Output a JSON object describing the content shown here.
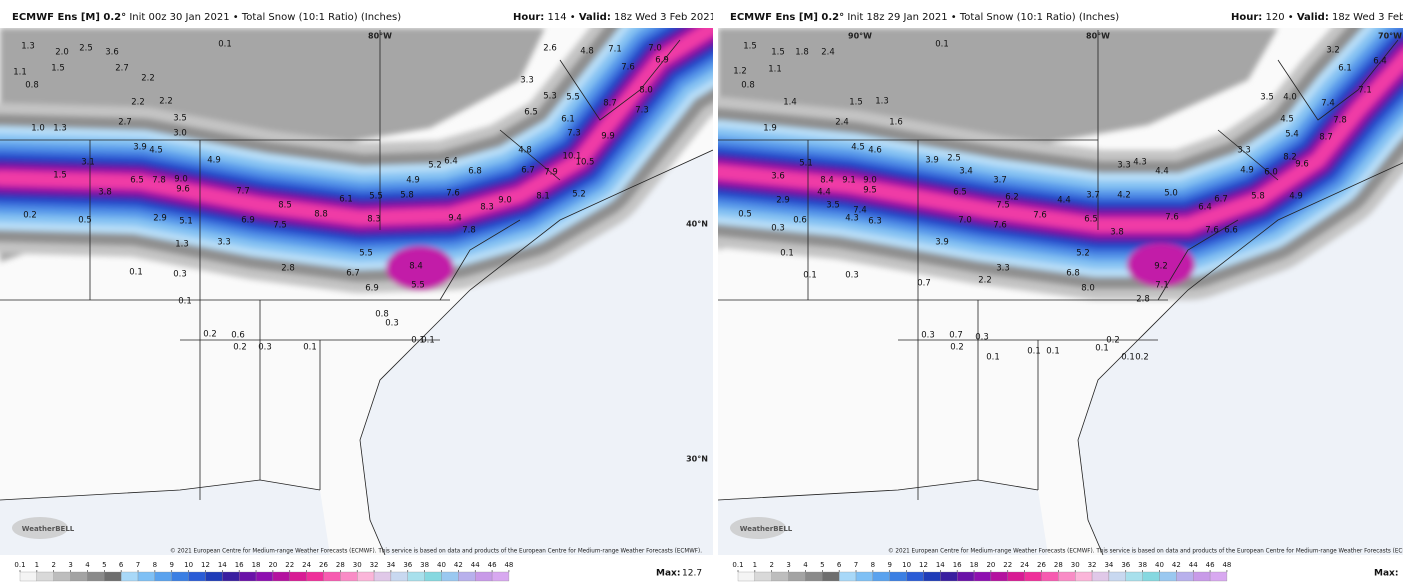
{
  "separator": "•",
  "legend_ticks": [
    0.1,
    1,
    2,
    3,
    4,
    5,
    6,
    7,
    8,
    9,
    10,
    12,
    14,
    16,
    18,
    20,
    22,
    24,
    26,
    28,
    30,
    32,
    34,
    36,
    38,
    40,
    42,
    44,
    46,
    48
  ],
  "panels": [
    {
      "header": {
        "model": "ECMWF Ens [M] 0.2°",
        "init": "Init 00z 30 Jan 2021",
        "product": "Total Snow (10:1 Ratio) (Inches)",
        "hour_label": "Hour:",
        "hour": "114",
        "valid_label": "Valid:",
        "valid": "18z Wed 3 Feb 2021"
      },
      "grid_labels": [
        "80°W",
        "40°N",
        "30°N"
      ],
      "map_labels": [
        "1.3",
        "2.0",
        "2.5",
        "3.6",
        "0.1",
        "1.1",
        "1.5",
        "2.7",
        "2.2",
        "0.8",
        "2.2",
        "2.2",
        "3.5",
        "2.7",
        "3.0",
        "1.0",
        "1.3",
        "3.9",
        "4.5",
        "4.9",
        "3.1",
        "6.5",
        "7.8",
        "9.0",
        "9.6",
        "7.7",
        "8.5",
        "8.8",
        "7.5",
        "6.9",
        "5.1",
        "2.9",
        "3.8",
        "1.5",
        "0.2",
        "0.5",
        "6.1",
        "5.5",
        "5.8",
        "7.6",
        "9.4",
        "8.3",
        "6.8",
        "5.2",
        "6.4",
        "4.9",
        "8.3",
        "9.0",
        "8.1",
        "5.2",
        "7.9",
        "10.5",
        "10.1",
        "7.3",
        "9.9",
        "6.1",
        "6.5",
        "8.7",
        "8.0",
        "7.3",
        "7.6",
        "6.9",
        "7.0",
        "4.8",
        "7.1",
        "2.6",
        "3.3",
        "5.3",
        "5.5",
        "4.8",
        "6.7",
        "5.5",
        "6.7",
        "6.9",
        "8.4",
        "5.5",
        "7.8",
        "2.8",
        "3.3",
        "1.3",
        "0.3",
        "0.1",
        "0.1",
        "0.2",
        "0.6",
        "0.2",
        "0.3",
        "0.1",
        "0.3",
        "0.8",
        "0.1",
        "0.1"
      ],
      "logo": "WeatherBELL",
      "copyright": "© 2021 European Centre for Medium-range Weather Forecasts (ECMWF). This service is based on data and products of the European Centre for Medium-range Weather Forecasts (ECMWF).",
      "max_label": "Max:",
      "max": 12.7
    },
    {
      "header": {
        "model": "ECMWF Ens [M] 0.2°",
        "init": "Init 18z 29 Jan 2021",
        "product": "Total Snow (10:1 Ratio) (Inches)",
        "hour_label": "Hour:",
        "hour": "120",
        "valid_label": "Valid:",
        "valid": "18z Wed 3 Feb 2021"
      },
      "grid_labels": [
        "90°W",
        "80°W",
        "70°W"
      ],
      "map_labels": [
        "1.5",
        "1.5",
        "1.8",
        "2.4",
        "0.1",
        "1.2",
        "1.1",
        "0.8",
        "1.4",
        "1.5",
        "1.3",
        "1.9",
        "2.4",
        "1.6",
        "4.5",
        "4.6",
        "3.6",
        "5.1",
        "8.4",
        "9.1",
        "9.0",
        "9.5",
        "4.4",
        "3.5",
        "7.4",
        "4.3",
        "6.3",
        "7.0",
        "6.5",
        "7.5",
        "6.2",
        "7.6",
        "7.6",
        "6.5",
        "4.4",
        "3.7",
        "4.2",
        "5.0",
        "7.6",
        "6.4",
        "6.7",
        "5.8",
        "4.9",
        "9.6",
        "8.2",
        "8.7",
        "7.8",
        "7.4",
        "5.4",
        "4.5",
        "6.1",
        "6.4",
        "3.2",
        "7.1",
        "3.5",
        "4.0",
        "3.3",
        "4.9",
        "6.0",
        "3.9",
        "2.5",
        "3.4",
        "3.7",
        "4.3",
        "3.3",
        "4.4",
        "3.8",
        "9.2",
        "7.1",
        "8.0",
        "6.8",
        "5.2",
        "7.6",
        "6.6",
        "2.9",
        "0.5",
        "0.3",
        "0.6",
        "3.9",
        "3.3",
        "2.2",
        "0.7",
        "0.1",
        "0.1",
        "0.3",
        "0.3",
        "0.7",
        "0.2",
        "0.3",
        "0.1",
        "0.1",
        "0.1",
        "0.1",
        "0.2",
        "2.8",
        "0.1",
        "0.2"
      ],
      "logo": "WeatherBELL",
      "copyright": "© 2021 European Centre for Medium-range Weather Forecasts (ECMWF). This service is based on data and products of the European Centre for Medium-range Weather Forecasts (ECMWF).",
      "max_label": "Max:"
    }
  ]
}
